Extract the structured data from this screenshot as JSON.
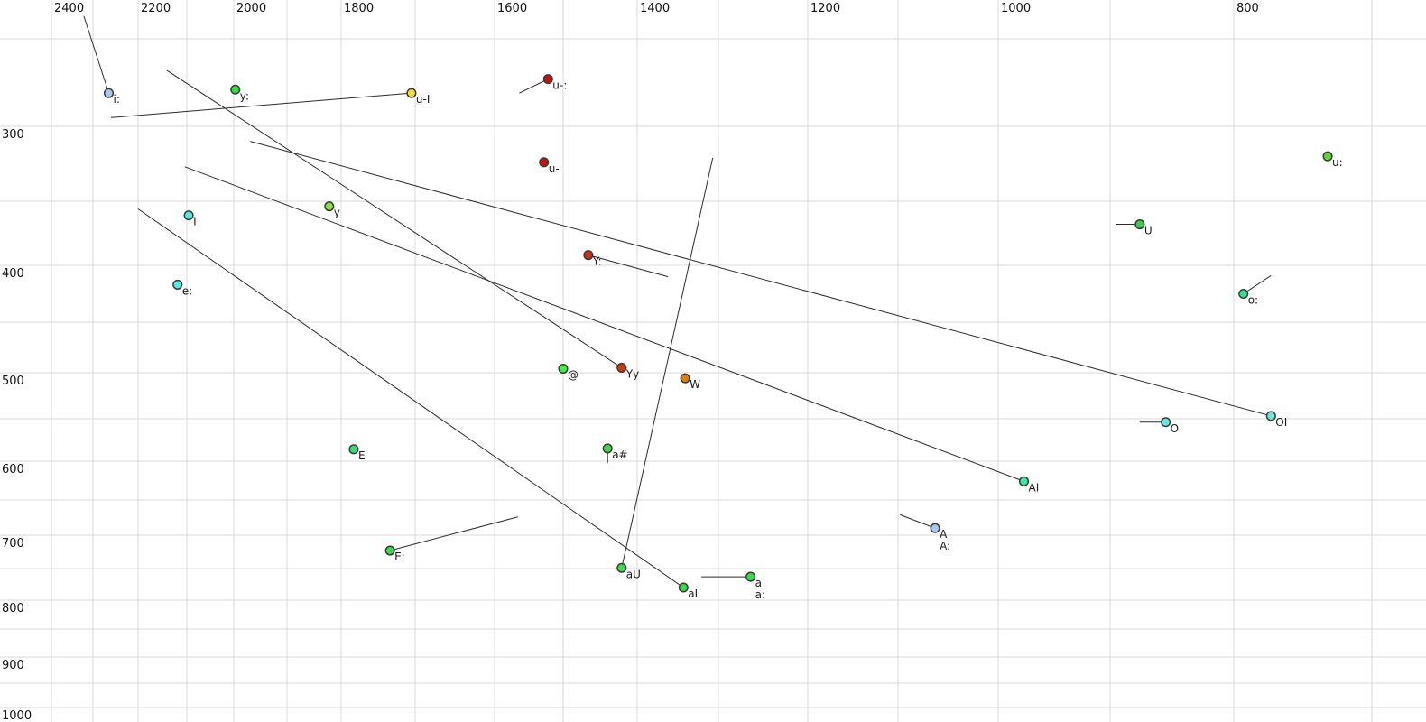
{
  "chart_data": {
    "type": "scatter",
    "description": "Vowel formant plot: F2 (Hz) on top horizontal axis decreasing left-to-right, F1 (Hz) on left vertical axis increasing downward",
    "x_axis": {
      "unit": "Hz",
      "position": "top",
      "direction": "reversed",
      "major_tick_labels": [
        "2400",
        "2200",
        "2000",
        "1800",
        "1600",
        "1400",
        "1200",
        "1000",
        "800"
      ],
      "major_tick_values": [
        2400,
        2200,
        2000,
        1800,
        1600,
        1400,
        1200,
        1000,
        800
      ],
      "gridline_values": [
        2400,
        2300,
        2200,
        2100,
        2000,
        1900,
        1800,
        1700,
        1600,
        1500,
        1400,
        1300,
        1200,
        1100,
        1000,
        900,
        800,
        700
      ],
      "grid": true
    },
    "y_axis": {
      "unit": "Hz",
      "position": "left",
      "direction": "downward",
      "major_tick_labels": [
        "300",
        "400",
        "500",
        "600",
        "700",
        "800",
        "900",
        "1000"
      ],
      "major_tick_values": [
        300,
        400,
        500,
        600,
        700,
        800,
        900,
        1000
      ],
      "gridline_values": [
        250,
        300,
        350,
        400,
        450,
        500,
        550,
        600,
        650,
        700,
        750,
        800,
        850,
        900,
        950,
        1000
      ],
      "grid": true
    },
    "points": [
      {
        "label": "i:",
        "f2": 2265,
        "f1": 281,
        "color": "#a8c8f0",
        "label_row": 1
      },
      {
        "label": "y:",
        "f2": 1997,
        "f1": 279,
        "color": "#2edc3c",
        "label_row": 1
      },
      {
        "label": "u-I",
        "f2": 1705,
        "f1": 281,
        "color": "#f0e130",
        "label_row": 1
      },
      {
        "label": "u-:",
        "f2": 1522,
        "f1": 273,
        "color": "#c01414",
        "label_row": 1
      },
      {
        "label": "u-",
        "f2": 1528,
        "f1": 324,
        "color": "#c01414",
        "label_row": 1
      },
      {
        "label": "u:",
        "f2": 732,
        "f1": 320,
        "color": "#5ad832",
        "label_row": 1
      },
      {
        "label": "I",
        "f2": 2096,
        "f1": 361,
        "color": "#57e8e0",
        "label_row": 1
      },
      {
        "label": "y",
        "f2": 1822,
        "f1": 354,
        "color": "#8ae23c",
        "label_row": 1
      },
      {
        "label": "U",
        "f2": 876,
        "f1": 368,
        "color": "#3ecc50",
        "label_row": 1
      },
      {
        "label": "e:",
        "f2": 2119,
        "f1": 417,
        "color": "#57e8e0",
        "label_row": 1
      },
      {
        "label": "o:",
        "f2": 793,
        "f1": 425,
        "color": "#3cdc8c",
        "label_row": 1
      },
      {
        "label": "Y:",
        "f2": 1466,
        "f1": 392,
        "color": "#d03010",
        "label_row": 1
      },
      {
        "label": "@",
        "f2": 1500,
        "f1": 496,
        "color": "#44ee44",
        "label_row": 1
      },
      {
        "label": "Yy",
        "f2": 1421,
        "f1": 495,
        "color": "#cc3a10",
        "label_row": 1
      },
      {
        "label": "W",
        "f2": 1341,
        "f1": 506,
        "color": "#e07f10",
        "label_row": 1
      },
      {
        "label": "O",
        "f2": 855,
        "f1": 554,
        "color": "#6ae8e0",
        "label_row": 1
      },
      {
        "label": "OI",
        "f2": 773,
        "f1": 547,
        "color": "#6ae8e0",
        "label_row": 1
      },
      {
        "label": "E",
        "f2": 1783,
        "f1": 586,
        "color": "#3cdc74",
        "label_row": 1
      },
      {
        "label": "a#",
        "f2": 1440,
        "f1": 585,
        "color": "#44d846",
        "label_row": 1
      },
      {
        "label": "AI",
        "f2": 977,
        "f1": 626,
        "color": "#3ce8a0",
        "label_row": 1
      },
      {
        "label": "A",
        "f2": 1063,
        "f1": 690,
        "color": "#a8c8f0",
        "label_row": 1
      },
      {
        "label": "A:",
        "f2": 1063,
        "f1": 690,
        "color": "#a8c8f0",
        "label_row": 2
      },
      {
        "label": "E:",
        "f2": 1734,
        "f1": 723,
        "color": "#3cd84c",
        "label_row": 1
      },
      {
        "label": "aU",
        "f2": 1421,
        "f1": 749,
        "color": "#3cd84c",
        "label_row": 1
      },
      {
        "label": "aI",
        "f2": 1343,
        "f1": 780,
        "color": "#3cd84c",
        "label_row": 1
      },
      {
        "label": "a",
        "f2": 1264,
        "f1": 763,
        "color": "#3cd84c",
        "label_row": 1
      },
      {
        "label": "a:",
        "f2": 1264,
        "f1": 763,
        "color": "#3cd84c",
        "label_row": 2
      }
    ],
    "trajectories": [
      {
        "name": "into-i:",
        "from": {
          "f2": 2322,
          "f1": 237
        },
        "to": {
          "f2": 2265,
          "f1": 281
        }
      },
      {
        "name": "into-u-I",
        "from": {
          "f2": 2260,
          "f1": 295
        },
        "to": {
          "f2": 1705,
          "f1": 281
        }
      },
      {
        "name": "into-u-:",
        "from": {
          "f2": 1564,
          "f1": 281
        },
        "to": {
          "f2": 1522,
          "f1": 273
        }
      },
      {
        "name": "into-Yy",
        "from": {
          "f2": 2141,
          "f1": 268
        },
        "to": {
          "f2": 1421,
          "f1": 495
        }
      },
      {
        "name": "into-AI",
        "from": {
          "f2": 2104,
          "f1": 327
        },
        "to": {
          "f2": 977,
          "f1": 626
        }
      },
      {
        "name": "into-OI",
        "from": {
          "f2": 1969,
          "f1": 310
        },
        "to": {
          "f2": 773,
          "f1": 547
        }
      },
      {
        "name": "into-aI",
        "from": {
          "f2": 2200,
          "f1": 356
        },
        "to": {
          "f2": 1343,
          "f1": 780
        }
      },
      {
        "name": "aU-rise",
        "from": {
          "f2": 1307,
          "f1": 321
        },
        "to": {
          "f2": 1421,
          "f1": 749
        }
      },
      {
        "name": "Y:-tail",
        "from": {
          "f2": 1466,
          "f1": 392
        },
        "to": {
          "f2": 1362,
          "f1": 410
        }
      },
      {
        "name": "U-tail",
        "from": {
          "f2": 895,
          "f1": 368
        },
        "to": {
          "f2": 876,
          "f1": 368
        }
      },
      {
        "name": "o:-tail",
        "from": {
          "f2": 793,
          "f1": 425
        },
        "to": {
          "f2": 773,
          "f1": 409
        }
      },
      {
        "name": "O-tail",
        "from": {
          "f2": 876,
          "f1": 554
        },
        "to": {
          "f2": 855,
          "f1": 554
        }
      },
      {
        "name": "E:-tail",
        "from": {
          "f2": 1734,
          "f1": 723
        },
        "to": {
          "f2": 1566,
          "f1": 674
        }
      },
      {
        "name": "into-A",
        "from": {
          "f2": 1098,
          "f1": 671
        },
        "to": {
          "f2": 1063,
          "f1": 690
        }
      },
      {
        "name": "into-a",
        "from": {
          "f2": 1321,
          "f1": 763
        },
        "to": {
          "f2": 1264,
          "f1": 763
        }
      },
      {
        "name": "a#-tick",
        "from": {
          "f2": 1440,
          "f1": 585
        },
        "to": {
          "f2": 1440,
          "f1": 602
        }
      }
    ],
    "style": {
      "background_color": "#ffffff",
      "gridline_color": "#d8d8d8",
      "trajectory_color": "#2a2a2a",
      "point_stroke_color": "#3a3a3a",
      "axis_label_color": "#111111",
      "point_label_color": "#1a1a1a"
    }
  }
}
